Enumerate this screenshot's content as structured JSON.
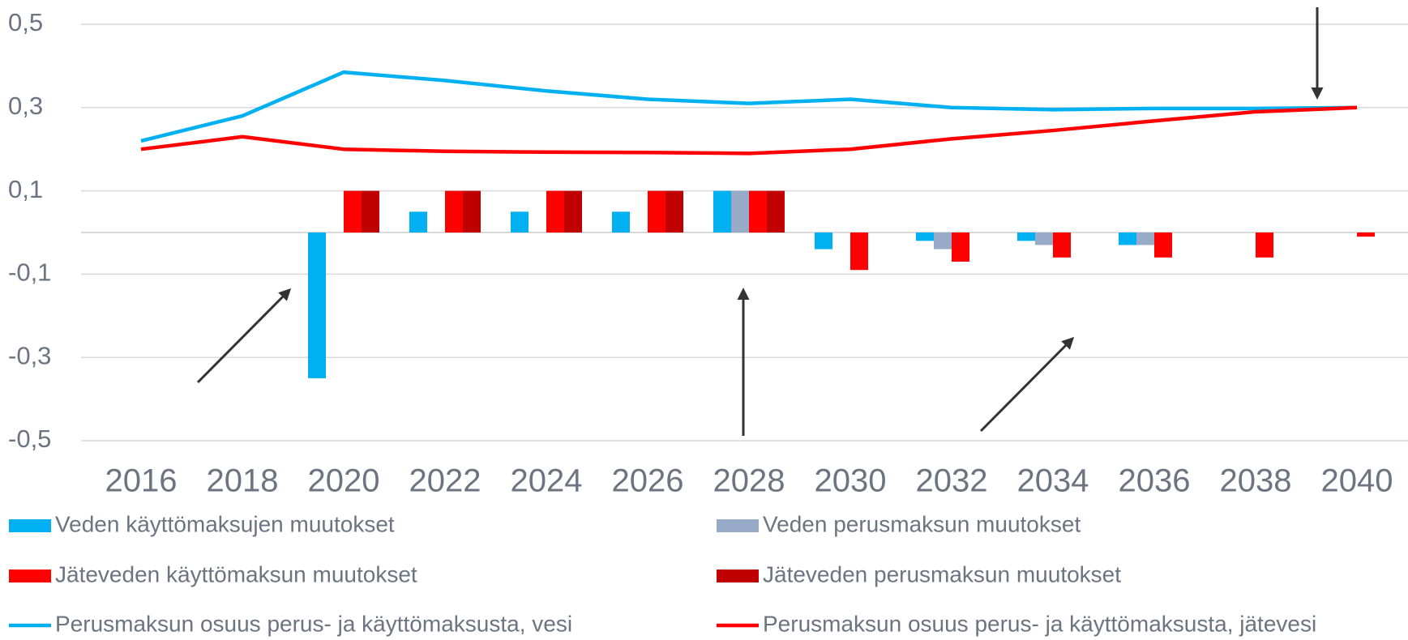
{
  "chart_data": {
    "type": "bar",
    "categories": [
      "2016",
      "2018",
      "2020",
      "2022",
      "2024",
      "2026",
      "2028",
      "2030",
      "2032",
      "2034",
      "2036",
      "2038",
      "2040"
    ],
    "series": [
      {
        "name": "Veden käyttömaksujen muutokset",
        "type": "bar",
        "color": "#00b0f0",
        "values": [
          0,
          0,
          -0.35,
          0.05,
          0.05,
          0.05,
          0.1,
          -0.04,
          -0.02,
          -0.02,
          -0.03,
          0,
          0
        ]
      },
      {
        "name": "Veden perusmaksun muutokset",
        "type": "bar",
        "color": "#97abc8",
        "values": [
          0,
          0,
          0,
          0,
          0,
          0,
          0.1,
          0,
          -0.04,
          -0.03,
          -0.03,
          0,
          0
        ]
      },
      {
        "name": "Jäteveden käyttömaksun muutokset",
        "type": "bar",
        "color": "#ff0000",
        "values": [
          0,
          0,
          0.1,
          0.1,
          0.1,
          0.1,
          0.1,
          -0.09,
          -0.07,
          -0.06,
          -0.06,
          -0.06,
          -0.01
        ]
      },
      {
        "name": "Jäteveden perusmaksun muutokset",
        "type": "bar",
        "color": "#c00000",
        "values": [
          0,
          0,
          0.1,
          0.1,
          0.1,
          0.1,
          0.1,
          0,
          0,
          0,
          0,
          0,
          0
        ]
      },
      {
        "name": "Perusmaksun osuus perus- ja käyttömaksusta, vesi",
        "type": "line",
        "color": "#00b0f0",
        "values": [
          0.22,
          0.28,
          0.385,
          0.365,
          0.34,
          0.32,
          0.31,
          0.32,
          0.3,
          0.295,
          0.298,
          0.298,
          0.3
        ]
      },
      {
        "name": "Perusmaksun osuus perus- ja käyttömaksusta, jätevesi",
        "type": "line",
        "color": "#ff0000",
        "values": [
          0.2,
          0.23,
          0.2,
          0.195,
          0.193,
          0.192,
          0.19,
          0.2,
          0.225,
          0.245,
          0.268,
          0.29,
          0.3
        ]
      }
    ],
    "ylim": [
      -0.5,
      0.5
    ],
    "yticks": [
      {
        "value": 0.5,
        "label": "0,5"
      },
      {
        "value": 0.3,
        "label": "0,3"
      },
      {
        "value": 0.1,
        "label": "0,1"
      },
      {
        "value": -0.1,
        "label": "-0,1"
      },
      {
        "value": -0.3,
        "label": "-0,3"
      },
      {
        "value": -0.5,
        "label": "-0,5"
      }
    ],
    "grid": true,
    "legend": "bottom"
  }
}
